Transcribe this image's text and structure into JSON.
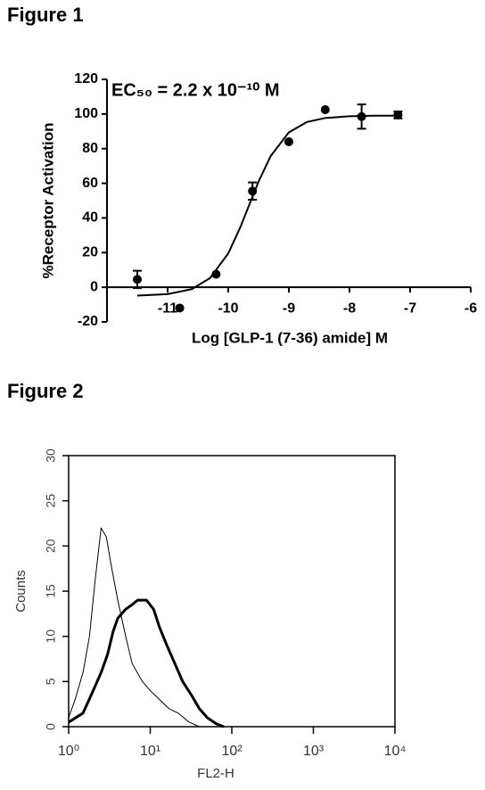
{
  "chart_data": [
    {
      "type": "scatter",
      "title": "Figure 1",
      "annotation": "EC₅₀ = 2.2 x 10⁻¹⁰ M",
      "x_label": "Log [GLP-1 (7-36) amide] M",
      "y_label": "%Receptor Activation",
      "x": [
        -11.5,
        -10.8,
        -10.2,
        -9.6,
        -9.0,
        -8.4,
        -7.8,
        -7.2
      ],
      "values": [
        4.5,
        -12,
        7.5,
        55.5,
        84,
        102.5,
        98.5,
        99.5
      ],
      "errors": [
        5,
        null,
        null,
        5,
        null,
        null,
        7,
        2
      ],
      "fit": {
        "x": [
          -11.5,
          -11.0,
          -10.6,
          -10.3,
          -10.0,
          -9.8,
          -9.66,
          -9.5,
          -9.3,
          -9.0,
          -8.7,
          -8.4,
          -8.0,
          -7.6,
          -7.2
        ],
        "values": [
          -4.8,
          -4.0,
          -1.1,
          5.3,
          19.5,
          34.7,
          47,
          61,
          75.7,
          89.4,
          95.4,
          97.7,
          98.7,
          99,
          99
        ]
      },
      "color": "#000000",
      "xlim": [
        -12,
        -6
      ],
      "xticks": [
        -11,
        -10,
        -9,
        -8,
        -7,
        -6
      ],
      "ylim": [
        -20,
        120
      ],
      "yticks": [
        -20,
        0,
        20,
        40,
        60,
        80,
        100,
        120
      ]
    },
    {
      "type": "line",
      "title": "Figure 2",
      "x_label": "FL2-H",
      "y_label": "Counts",
      "x_log": true,
      "series": [
        {
          "color": "#000000",
          "line_width": 1,
          "x": [
            1,
            1.2,
            1.5,
            1.8,
            2.1,
            2.5,
            2.9,
            3.3,
            4,
            5,
            6,
            8,
            10,
            13,
            17,
            22,
            30,
            40
          ],
          "values": [
            1,
            3,
            6,
            10,
            16,
            22,
            21,
            18,
            14,
            10,
            7,
            5,
            4,
            3,
            2,
            1.5,
            0.5,
            0
          ]
        },
        {
          "color": "#000000",
          "line_width": 3,
          "x": [
            1,
            1.5,
            2,
            2.5,
            3,
            3.5,
            4,
            5,
            6,
            7,
            9,
            11,
            13,
            16,
            20,
            25,
            32,
            40,
            50,
            65,
            80
          ],
          "values": [
            0.5,
            1.5,
            4,
            6,
            8,
            10.5,
            12,
            13,
            13.5,
            14,
            14,
            13,
            11,
            9,
            7,
            5,
            3.5,
            2,
            1,
            0.3,
            0
          ]
        }
      ],
      "xlim": [
        1,
        10000
      ],
      "xticks": [
        {
          "value": 1,
          "label": "10⁰"
        },
        {
          "value": 10,
          "label": "10¹"
        },
        {
          "value": 100,
          "label": "10²"
        },
        {
          "value": 1000,
          "label": "10³"
        },
        {
          "value": 10000,
          "label": "10⁴"
        }
      ],
      "ylim": [
        0,
        30
      ],
      "yticks": [
        0,
        5,
        10,
        15,
        20,
        25,
        30
      ]
    }
  ]
}
